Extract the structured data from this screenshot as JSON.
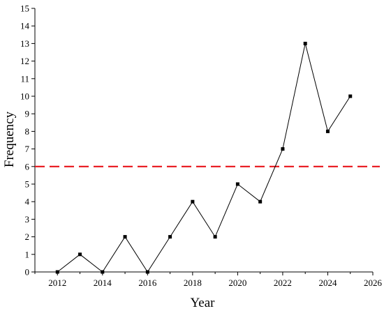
{
  "chart_data": {
    "type": "line",
    "title": "",
    "xlabel": "Year",
    "ylabel": "Frequency",
    "xlim": [
      2011,
      2026
    ],
    "ylim": [
      0,
      15
    ],
    "xticks": [
      2012,
      2014,
      2016,
      2018,
      2020,
      2022,
      2024,
      2026
    ],
    "yticks": [
      0,
      1,
      2,
      3,
      4,
      5,
      6,
      7,
      8,
      9,
      10,
      11,
      12,
      13,
      14,
      15
    ],
    "grid": false,
    "series": [
      {
        "x": [
          2012,
          2013,
          2014,
          2015,
          2016,
          2017,
          2018,
          2019,
          2020,
          2021,
          2022,
          2023,
          2024,
          2025
        ],
        "values": [
          0,
          1,
          0,
          2,
          0,
          2,
          4,
          2,
          5,
          4,
          7,
          13,
          8,
          10
        ],
        "color": "#000000",
        "marker": "square"
      }
    ],
    "reference_line": {
      "y": 6,
      "color": "#e8141a",
      "style": "dashed"
    }
  }
}
